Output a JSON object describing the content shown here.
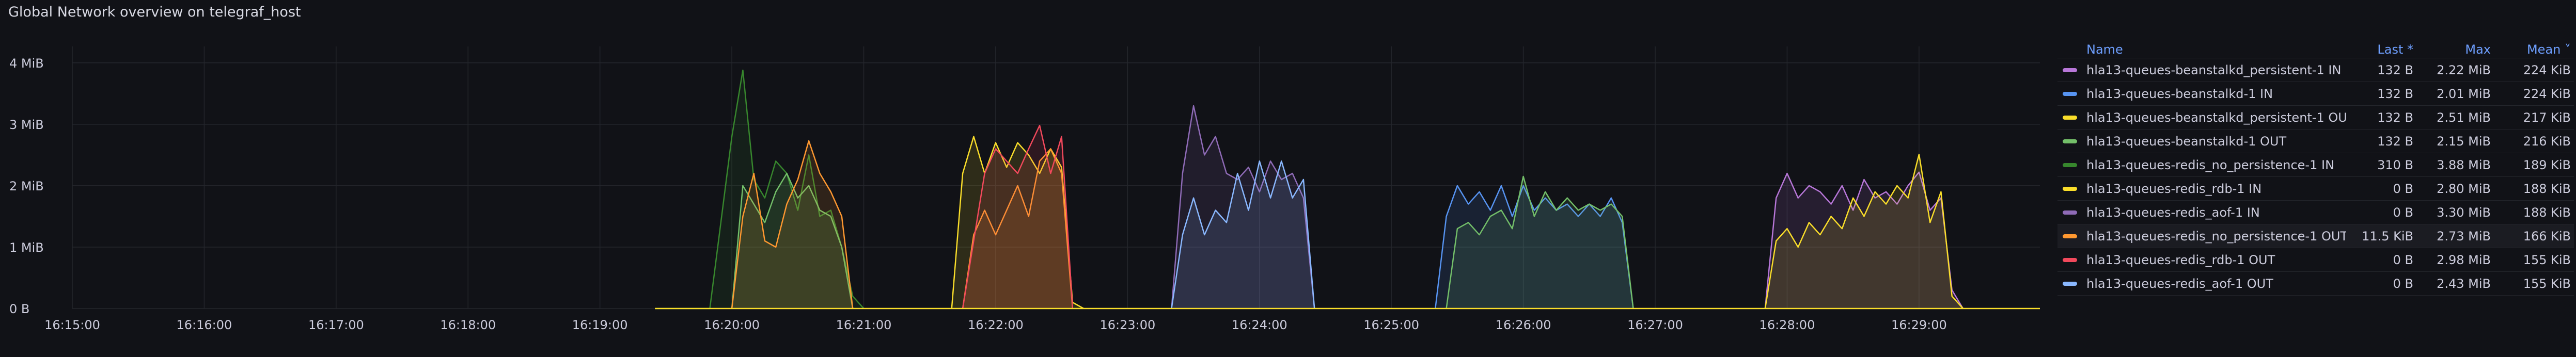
{
  "panel": {
    "title": "Global Network overview on telegraf_host"
  },
  "legend": {
    "headers": {
      "name": "Name",
      "last": "Last *",
      "max": "Max",
      "mean": "Mean ˅"
    },
    "rows": [
      {
        "name": "hla13-queues-beanstalkd_persistent-1 IN",
        "last": "132 B",
        "max": "2.22 MiB",
        "mean": "224 KiB",
        "color": "#b877d9"
      },
      {
        "name": "hla13-queues-beanstalkd-1 IN",
        "last": "132 B",
        "max": "2.01 MiB",
        "mean": "224 KiB",
        "color": "#5794f2"
      },
      {
        "name": "hla13-queues-beanstalkd_persistent-1 OUT",
        "last": "132 B",
        "max": "2.51 MiB",
        "mean": "217 KiB",
        "color": "#fade2a"
      },
      {
        "name": "hla13-queues-beanstalkd-1 OUT",
        "last": "132 B",
        "max": "2.15 MiB",
        "mean": "216 KiB",
        "color": "#73bf69"
      },
      {
        "name": "hla13-queues-redis_no_persistence-1 IN",
        "last": "310 B",
        "max": "3.88 MiB",
        "mean": "189 KiB",
        "color": "#37872d"
      },
      {
        "name": "hla13-queues-redis_rdb-1 IN",
        "last": "0 B",
        "max": "2.80 MiB",
        "mean": "188 KiB",
        "color": "#fade2a"
      },
      {
        "name": "hla13-queues-redis_aof-1 IN",
        "last": "0 B",
        "max": "3.30 MiB",
        "mean": "188 KiB",
        "color": "#8f6bb7"
      },
      {
        "name": "hla13-queues-redis_no_persistence-1 OUT",
        "last": "11.5 KiB",
        "max": "2.73 MiB",
        "mean": "166 KiB",
        "color": "#ff9830"
      },
      {
        "name": "hla13-queues-redis_rdb-1 OUT",
        "last": "0 B",
        "max": "2.98 MiB",
        "mean": "155 KiB",
        "color": "#f2495c"
      },
      {
        "name": "hla13-queues-redis_aof-1 OUT",
        "last": "0 B",
        "max": "2.43 MiB",
        "mean": "155 KiB",
        "color": "#8ab8ff"
      }
    ]
  },
  "chart_data": {
    "type": "area",
    "y_ticks": [
      "0 B",
      "1 MiB",
      "2 MiB",
      "3 MiB",
      "4 MiB"
    ],
    "ylim": [
      0,
      4.2
    ],
    "x_ticks": [
      "16:15:00",
      "16:16:00",
      "16:17:00",
      "16:18:00",
      "16:19:00",
      "16:20:00",
      "16:21:00",
      "16:22:00",
      "16:23:00",
      "16:24:00",
      "16:25:00",
      "16:26:00",
      "16:27:00",
      "16:28:00",
      "16:29:00"
    ],
    "x_start": "16:15:00",
    "x_end": "16:29:55",
    "grid": true,
    "series": [
      {
        "color": "#37872d",
        "points": [
          [
            "16:19:25",
            0
          ],
          [
            "16:19:50",
            0
          ],
          [
            "16:20:00",
            2.8
          ],
          [
            "16:20:05",
            3.88
          ],
          [
            "16:20:10",
            2.1
          ],
          [
            "16:20:15",
            1.8
          ],
          [
            "16:20:20",
            2.4
          ],
          [
            "16:20:25",
            2.2
          ],
          [
            "16:20:30",
            1.6
          ],
          [
            "16:20:35",
            2.5
          ],
          [
            "16:20:40",
            1.5
          ],
          [
            "16:20:45",
            1.6
          ],
          [
            "16:20:50",
            1.0
          ],
          [
            "16:20:55",
            0.2
          ],
          [
            "16:21:00",
            0
          ]
        ]
      },
      {
        "color": "#73bf69",
        "points": [
          [
            "16:20:00",
            0
          ],
          [
            "16:20:05",
            2.0
          ],
          [
            "16:20:10",
            1.7
          ],
          [
            "16:20:15",
            1.4
          ],
          [
            "16:20:20",
            1.9
          ],
          [
            "16:20:25",
            2.2
          ],
          [
            "16:20:30",
            1.8
          ],
          [
            "16:20:35",
            2.0
          ],
          [
            "16:20:40",
            1.6
          ],
          [
            "16:20:45",
            1.5
          ],
          [
            "16:20:50",
            1.0
          ],
          [
            "16:20:55",
            0
          ]
        ]
      },
      {
        "color": "#ff9830",
        "points": [
          [
            "16:20:00",
            0
          ],
          [
            "16:20:05",
            1.5
          ],
          [
            "16:20:10",
            2.2
          ],
          [
            "16:20:15",
            1.1
          ],
          [
            "16:20:20",
            1.0
          ],
          [
            "16:20:25",
            1.7
          ],
          [
            "16:20:30",
            2.1
          ],
          [
            "16:20:35",
            2.73
          ],
          [
            "16:20:40",
            2.2
          ],
          [
            "16:20:45",
            1.9
          ],
          [
            "16:20:50",
            1.5
          ],
          [
            "16:20:55",
            0
          ]
        ]
      },
      {
        "color": "#fade2a",
        "points": [
          [
            "16:21:40",
            0
          ],
          [
            "16:21:45",
            2.2
          ],
          [
            "16:21:50",
            2.8
          ],
          [
            "16:21:55",
            2.2
          ],
          [
            "16:22:00",
            2.7
          ],
          [
            "16:22:05",
            2.3
          ],
          [
            "16:22:10",
            2.7
          ],
          [
            "16:22:15",
            2.5
          ],
          [
            "16:22:20",
            2.2
          ],
          [
            "16:22:25",
            2.6
          ],
          [
            "16:22:30",
            2.3
          ],
          [
            "16:22:35",
            0.1
          ],
          [
            "16:22:40",
            0
          ]
        ]
      },
      {
        "color": "#ff9830",
        "points": [
          [
            "16:21:45",
            0
          ],
          [
            "16:21:50",
            1.2
          ],
          [
            "16:21:55",
            1.6
          ],
          [
            "16:22:00",
            1.2
          ],
          [
            "16:22:05",
            1.6
          ],
          [
            "16:22:10",
            2.0
          ],
          [
            "16:22:15",
            1.5
          ],
          [
            "16:22:20",
            2.4
          ],
          [
            "16:22:25",
            2.6
          ],
          [
            "16:22:30",
            2.2
          ],
          [
            "16:22:35",
            0
          ]
        ]
      },
      {
        "color": "#f2495c",
        "points": [
          [
            "16:21:45",
            0
          ],
          [
            "16:21:55",
            2.2
          ],
          [
            "16:22:00",
            2.6
          ],
          [
            "16:22:05",
            2.4
          ],
          [
            "16:22:10",
            2.2
          ],
          [
            "16:22:15",
            2.6
          ],
          [
            "16:22:20",
            2.98
          ],
          [
            "16:22:25",
            2.2
          ],
          [
            "16:22:30",
            2.8
          ],
          [
            "16:22:35",
            0
          ]
        ]
      },
      {
        "color": "#8f6bb7",
        "points": [
          [
            "16:23:20",
            0
          ],
          [
            "16:23:25",
            2.2
          ],
          [
            "16:23:30",
            3.3
          ],
          [
            "16:23:35",
            2.5
          ],
          [
            "16:23:40",
            2.8
          ],
          [
            "16:23:45",
            2.2
          ],
          [
            "16:23:50",
            2.1
          ],
          [
            "16:23:55",
            2.3
          ],
          [
            "16:24:00",
            1.9
          ],
          [
            "16:24:05",
            2.4
          ],
          [
            "16:24:10",
            2.1
          ],
          [
            "16:24:15",
            2.2
          ],
          [
            "16:24:20",
            1.8
          ],
          [
            "16:24:25",
            0
          ]
        ]
      },
      {
        "color": "#8ab8ff",
        "points": [
          [
            "16:23:20",
            0
          ],
          [
            "16:23:25",
            1.2
          ],
          [
            "16:23:30",
            1.8
          ],
          [
            "16:23:35",
            1.2
          ],
          [
            "16:23:40",
            1.6
          ],
          [
            "16:23:45",
            1.4
          ],
          [
            "16:23:50",
            2.2
          ],
          [
            "16:23:55",
            1.6
          ],
          [
            "16:24:00",
            2.4
          ],
          [
            "16:24:05",
            1.8
          ],
          [
            "16:24:10",
            2.4
          ],
          [
            "16:24:15",
            1.8
          ],
          [
            "16:24:20",
            2.1
          ],
          [
            "16:24:25",
            0
          ]
        ]
      },
      {
        "color": "#5794f2",
        "points": [
          [
            "16:25:20",
            0
          ],
          [
            "16:25:25",
            1.5
          ],
          [
            "16:25:30",
            2.0
          ],
          [
            "16:25:35",
            1.7
          ],
          [
            "16:25:40",
            1.9
          ],
          [
            "16:25:45",
            1.6
          ],
          [
            "16:25:50",
            2.0
          ],
          [
            "16:25:55",
            1.5
          ],
          [
            "16:26:00",
            2.0
          ],
          [
            "16:26:05",
            1.6
          ],
          [
            "16:26:10",
            1.8
          ],
          [
            "16:26:15",
            1.6
          ],
          [
            "16:26:20",
            1.7
          ],
          [
            "16:26:25",
            1.5
          ],
          [
            "16:26:30",
            1.7
          ],
          [
            "16:26:35",
            1.5
          ],
          [
            "16:26:40",
            1.8
          ],
          [
            "16:26:45",
            1.4
          ],
          [
            "16:26:50",
            0
          ]
        ]
      },
      {
        "color": "#73bf69",
        "points": [
          [
            "16:25:25",
            0
          ],
          [
            "16:25:30",
            1.3
          ],
          [
            "16:25:35",
            1.4
          ],
          [
            "16:25:40",
            1.2
          ],
          [
            "16:25:45",
            1.5
          ],
          [
            "16:25:50",
            1.6
          ],
          [
            "16:25:55",
            1.3
          ],
          [
            "16:26:00",
            2.15
          ],
          [
            "16:26:05",
            1.5
          ],
          [
            "16:26:10",
            1.9
          ],
          [
            "16:26:15",
            1.6
          ],
          [
            "16:26:20",
            1.8
          ],
          [
            "16:26:25",
            1.6
          ],
          [
            "16:26:30",
            1.7
          ],
          [
            "16:26:35",
            1.6
          ],
          [
            "16:26:40",
            1.7
          ],
          [
            "16:26:45",
            1.5
          ],
          [
            "16:26:50",
            0
          ]
        ]
      },
      {
        "color": "#b877d9",
        "points": [
          [
            "16:27:50",
            0
          ],
          [
            "16:27:55",
            1.8
          ],
          [
            "16:28:00",
            2.2
          ],
          [
            "16:28:05",
            1.8
          ],
          [
            "16:28:10",
            2.0
          ],
          [
            "16:28:15",
            1.9
          ],
          [
            "16:28:20",
            1.7
          ],
          [
            "16:28:25",
            2.0
          ],
          [
            "16:28:30",
            1.6
          ],
          [
            "16:28:35",
            2.1
          ],
          [
            "16:28:40",
            1.8
          ],
          [
            "16:28:45",
            1.9
          ],
          [
            "16:28:50",
            1.7
          ],
          [
            "16:28:55",
            2.0
          ],
          [
            "16:29:00",
            2.22
          ],
          [
            "16:29:05",
            1.6
          ],
          [
            "16:29:10",
            1.8
          ],
          [
            "16:29:15",
            0.3
          ],
          [
            "16:29:20",
            0
          ]
        ]
      },
      {
        "color": "#fade2a",
        "points": [
          [
            "16:27:50",
            0
          ],
          [
            "16:27:55",
            1.1
          ],
          [
            "16:28:00",
            1.3
          ],
          [
            "16:28:05",
            1.0
          ],
          [
            "16:28:10",
            1.4
          ],
          [
            "16:28:15",
            1.2
          ],
          [
            "16:28:20",
            1.5
          ],
          [
            "16:28:25",
            1.3
          ],
          [
            "16:28:30",
            1.8
          ],
          [
            "16:28:35",
            1.5
          ],
          [
            "16:28:40",
            1.9
          ],
          [
            "16:28:45",
            1.7
          ],
          [
            "16:28:50",
            2.0
          ],
          [
            "16:28:55",
            1.8
          ],
          [
            "16:29:00",
            2.51
          ],
          [
            "16:29:05",
            1.4
          ],
          [
            "16:29:10",
            1.9
          ],
          [
            "16:29:15",
            0.2
          ],
          [
            "16:29:20",
            0
          ]
        ]
      },
      {
        "color": "#fade2a",
        "points": [
          [
            "16:19:25",
            0
          ],
          [
            "16:29:55",
            0
          ]
        ]
      }
    ]
  }
}
